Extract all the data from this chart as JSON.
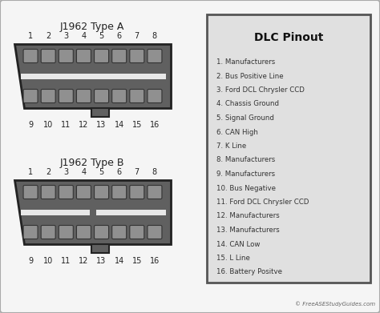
{
  "bg_color": "#f5f5f5",
  "outer_bg": "#ffffff",
  "title_typeA": "J1962 Type A",
  "title_typeB": "J1962 Type B",
  "connector_color": "#606060",
  "connector_dark": "#222222",
  "pin_color": "#909090",
  "pin_dark": "#333333",
  "strip_color": "#e8e8e8",
  "dlc_box_color": "#e0e0e0",
  "dlc_title": "DLC Pinout",
  "pinout": [
    "1. Manufacturers",
    "2. Bus Positive Line",
    "3. Ford DCL Chrysler CCD",
    "4. Chassis Ground",
    "5. Signal Ground",
    "6. CAN High",
    "7. K Line",
    "8. Manufacturers",
    "9. Manufacturers",
    "10. Bus Negative",
    "11. Ford DCL Chrysler CCD",
    "12. Manufacturers",
    "13. Manufacturers",
    "14. CAN Low",
    "15. L Line",
    "16. Battery Positve"
  ],
  "copyright": "© FreeASEStudyGuides.com"
}
